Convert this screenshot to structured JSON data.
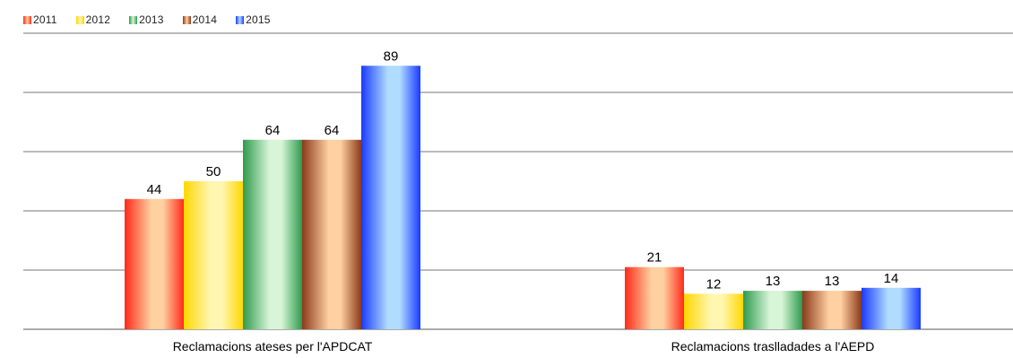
{
  "chart_data": {
    "type": "bar",
    "categories": [
      "Reclamacions ateses per l'APDCAT",
      "Reclamacions traslladades a l'AEPD"
    ],
    "series": [
      {
        "name": "2011",
        "values": [
          44,
          21
        ],
        "color": "#ff2a1a",
        "light": "#ffd0a0"
      },
      {
        "name": "2012",
        "values": [
          50,
          12
        ],
        "color": "#ffd700",
        "light": "#fff6b0"
      },
      {
        "name": "2013",
        "values": [
          64,
          13
        ],
        "color": "#2e9a4e",
        "light": "#d8f5d8"
      },
      {
        "name": "2014",
        "values": [
          64,
          13
        ],
        "color": "#8b3a1a",
        "light": "#ffd0a0"
      },
      {
        "name": "2015",
        "values": [
          89,
          14
        ],
        "color": "#1a3aff",
        "light": "#b0dcff"
      }
    ],
    "ylim": [
      0,
      100
    ],
    "grid": true,
    "legend": "top-left",
    "title": "",
    "xlabel": "",
    "ylabel": ""
  }
}
